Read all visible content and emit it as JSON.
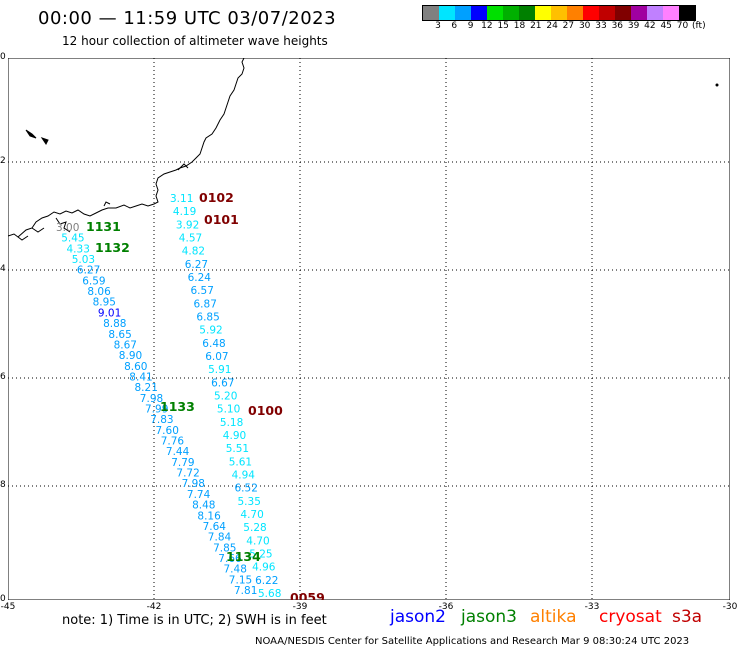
{
  "header": {
    "title": "00:00 — 11:59 UTC 03/07/2023",
    "subtitle": "12 hour collection of altimeter wave heights"
  },
  "color_scale": {
    "colors": [
      "#808080",
      "#00e5ff",
      "#00a0ff",
      "#0000ff",
      "#00e000",
      "#00b000",
      "#008000",
      "#ffff00",
      "#ffc000",
      "#ff8000",
      "#ff0000",
      "#c00000",
      "#800000",
      "#a000a0",
      "#c080ff",
      "#ff80ff",
      "#000000"
    ],
    "labels": [
      "3",
      "6",
      "9",
      "12",
      "15",
      "18",
      "21",
      "24",
      "27",
      "30",
      "33",
      "36",
      "39",
      "42",
      "45",
      "70",
      "(ft)"
    ]
  },
  "map": {
    "lat_labels": [
      "-20",
      "-22",
      "-24",
      "-26",
      "-28",
      "-30"
    ],
    "lon_labels": [
      "-45",
      "-42",
      "-39",
      "-36",
      "-33",
      "-30"
    ],
    "track_labels": [
      {
        "text": "1131",
        "color": "#008000"
      },
      {
        "text": "1132",
        "color": "#008000"
      },
      {
        "text": "1133",
        "color": "#008000"
      },
      {
        "text": "1134",
        "color": "#008000"
      },
      {
        "text": "0102",
        "color": "#800000"
      },
      {
        "text": "0101",
        "color": "#800000"
      },
      {
        "text": "0100",
        "color": "#800000"
      },
      {
        "text": "0059",
        "color": "#800000"
      }
    ],
    "track_a": [
      {
        "v": "3.00",
        "c": "#808080"
      },
      {
        "v": "5.45",
        "c": "#00e5ff"
      },
      {
        "v": "4.33",
        "c": "#00e5ff"
      },
      {
        "v": "5.03",
        "c": "#00e5ff"
      },
      {
        "v": "6.27",
        "c": "#00a0ff"
      },
      {
        "v": "6.59",
        "c": "#00a0ff"
      },
      {
        "v": "8.06",
        "c": "#00a0ff"
      },
      {
        "v": "8.95",
        "c": "#00a0ff"
      },
      {
        "v": "9.01",
        "c": "#0000ff"
      },
      {
        "v": "8.88",
        "c": "#00a0ff"
      },
      {
        "v": "8.65",
        "c": "#00a0ff"
      },
      {
        "v": "8.67",
        "c": "#00a0ff"
      },
      {
        "v": "8.90",
        "c": "#00a0ff"
      },
      {
        "v": "8.60",
        "c": "#00a0ff"
      },
      {
        "v": "8.41",
        "c": "#00a0ff"
      },
      {
        "v": "8.21",
        "c": "#00a0ff"
      },
      {
        "v": "7.98",
        "c": "#00a0ff"
      },
      {
        "v": "7.99",
        "c": "#00a0ff"
      },
      {
        "v": "7.83",
        "c": "#00a0ff"
      },
      {
        "v": "7.60",
        "c": "#00a0ff"
      },
      {
        "v": "7.76",
        "c": "#00a0ff"
      },
      {
        "v": "7.44",
        "c": "#00a0ff"
      },
      {
        "v": "7.79",
        "c": "#00a0ff"
      },
      {
        "v": "7.72",
        "c": "#00a0ff"
      },
      {
        "v": "7.98",
        "c": "#00a0ff"
      },
      {
        "v": "7.74",
        "c": "#00a0ff"
      },
      {
        "v": "8.48",
        "c": "#00a0ff"
      },
      {
        "v": "8.16",
        "c": "#00a0ff"
      },
      {
        "v": "7.64",
        "c": "#00a0ff"
      },
      {
        "v": "7.84",
        "c": "#00a0ff"
      },
      {
        "v": "7.85",
        "c": "#00a0ff"
      },
      {
        "v": "7.66",
        "c": "#00a0ff"
      },
      {
        "v": "7.48",
        "c": "#00a0ff"
      },
      {
        "v": "7.15",
        "c": "#00a0ff"
      },
      {
        "v": "7.81",
        "c": "#00a0ff"
      }
    ],
    "track_b": [
      {
        "v": "3.11",
        "c": "#00e5ff"
      },
      {
        "v": "4.19",
        "c": "#00e5ff"
      },
      {
        "v": "3.92",
        "c": "#00e5ff"
      },
      {
        "v": "4.57",
        "c": "#00e5ff"
      },
      {
        "v": "4.82",
        "c": "#00e5ff"
      },
      {
        "v": "6.27",
        "c": "#00a0ff"
      },
      {
        "v": "6.24",
        "c": "#00a0ff"
      },
      {
        "v": "6.57",
        "c": "#00a0ff"
      },
      {
        "v": "6.87",
        "c": "#00a0ff"
      },
      {
        "v": "6.85",
        "c": "#00a0ff"
      },
      {
        "v": "5.92",
        "c": "#00e5ff"
      },
      {
        "v": "6.48",
        "c": "#00a0ff"
      },
      {
        "v": "6.07",
        "c": "#00a0ff"
      },
      {
        "v": "5.91",
        "c": "#00e5ff"
      },
      {
        "v": "6.67",
        "c": "#00a0ff"
      },
      {
        "v": "5.20",
        "c": "#00e5ff"
      },
      {
        "v": "5.10",
        "c": "#00e5ff"
      },
      {
        "v": "5.18",
        "c": "#00e5ff"
      },
      {
        "v": "4.90",
        "c": "#00e5ff"
      },
      {
        "v": "5.51",
        "c": "#00e5ff"
      },
      {
        "v": "5.61",
        "c": "#00e5ff"
      },
      {
        "v": "4.94",
        "c": "#00e5ff"
      },
      {
        "v": "6.52",
        "c": "#00a0ff"
      },
      {
        "v": "5.35",
        "c": "#00e5ff"
      },
      {
        "v": "4.70",
        "c": "#00e5ff"
      },
      {
        "v": "5.28",
        "c": "#00e5ff"
      },
      {
        "v": "4.70",
        "c": "#00e5ff"
      },
      {
        "v": "5.25",
        "c": "#00e5ff"
      },
      {
        "v": "4.96",
        "c": "#00e5ff"
      },
      {
        "v": "6.22",
        "c": "#00a0ff"
      },
      {
        "v": "5.68",
        "c": "#00e5ff"
      }
    ]
  },
  "footer": {
    "note": "note:  1) Time is in UTC;  2) SWH is in feet",
    "credits": "NOAA/NESDIS Center for Satellite Applications and Research    Mar  9 08:30:24 UTC 2023"
  },
  "legend": [
    {
      "text": "jason2",
      "color": "#0000ff"
    },
    {
      "text": "jason3",
      "color": "#008000"
    },
    {
      "text": "altika",
      "color": "#ff8000"
    },
    {
      "text": "cryosat",
      "color": "#ff0000"
    },
    {
      "text": "s3a",
      "color": "#c00000"
    }
  ]
}
